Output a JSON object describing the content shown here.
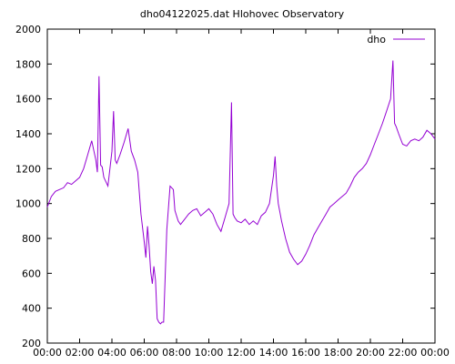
{
  "chart_data": {
    "type": "line",
    "title": "dho04122025.dat Hlohovec Observatory",
    "xlabel": "",
    "ylabel": "",
    "x_ticks": [
      "00:00",
      "02:00",
      "04:00",
      "06:00",
      "08:00",
      "10:00",
      "12:00",
      "14:00",
      "16:00",
      "18:00",
      "20:00",
      "22:00",
      "00:00"
    ],
    "y_ticks": [
      200,
      400,
      600,
      800,
      1000,
      1200,
      1400,
      1600,
      1800,
      2000
    ],
    "xlim": [
      0,
      24
    ],
    "ylim": [
      200,
      2000
    ],
    "grid": false,
    "legend": {
      "placement": "top-right",
      "entries": [
        "dho"
      ]
    },
    "colors": {
      "series": "#9400d3",
      "axis": "#000000"
    },
    "series": [
      {
        "name": "dho",
        "x": [
          0.0,
          0.25,
          0.5,
          0.75,
          1.0,
          1.25,
          1.5,
          1.75,
          2.0,
          2.25,
          2.5,
          2.75,
          3.0,
          3.1,
          3.2,
          3.3,
          3.4,
          3.5,
          3.75,
          4.0,
          4.1,
          4.2,
          4.3,
          4.5,
          4.75,
          5.0,
          5.2,
          5.4,
          5.6,
          5.8,
          6.0,
          6.1,
          6.2,
          6.3,
          6.4,
          6.5,
          6.6,
          6.7,
          6.8,
          6.9,
          7.0,
          7.1,
          7.2,
          7.4,
          7.6,
          7.8,
          7.9,
          8.0,
          8.1,
          8.25,
          8.5,
          8.75,
          9.0,
          9.25,
          9.5,
          9.75,
          10.0,
          10.25,
          10.5,
          10.75,
          11.0,
          11.25,
          11.4,
          11.5,
          11.6,
          11.75,
          12.0,
          12.25,
          12.5,
          12.75,
          13.0,
          13.25,
          13.5,
          13.75,
          14.0,
          14.1,
          14.2,
          14.3,
          14.5,
          14.75,
          15.0,
          15.25,
          15.5,
          15.75,
          16.0,
          16.25,
          16.5,
          16.75,
          17.0,
          17.25,
          17.5,
          17.75,
          18.0,
          18.25,
          18.5,
          18.75,
          19.0,
          19.25,
          19.5,
          19.75,
          20.0,
          20.25,
          20.5,
          20.75,
          21.0,
          21.25,
          21.4,
          21.5,
          21.6,
          21.75,
          22.0,
          22.25,
          22.5,
          22.75,
          23.0,
          23.25,
          23.5,
          23.75,
          24.0
        ],
        "values": [
          980,
          1040,
          1070,
          1080,
          1090,
          1120,
          1110,
          1130,
          1150,
          1200,
          1280,
          1360,
          1250,
          1180,
          1730,
          1220,
          1210,
          1150,
          1100,
          1300,
          1530,
          1250,
          1230,
          1280,
          1350,
          1430,
          1300,
          1250,
          1180,
          940,
          780,
          690,
          870,
          760,
          610,
          540,
          640,
          560,
          340,
          320,
          310,
          320,
          320,
          850,
          1100,
          1080,
          960,
          930,
          900,
          880,
          910,
          940,
          960,
          970,
          930,
          950,
          970,
          940,
          880,
          840,
          920,
          1000,
          1580,
          940,
          920,
          900,
          890,
          910,
          880,
          900,
          880,
          930,
          950,
          1000,
          1160,
          1270,
          1100,
          1000,
          900,
          800,
          720,
          680,
          650,
          670,
          710,
          760,
          820,
          860,
          900,
          940,
          980,
          1000,
          1020,
          1040,
          1060,
          1100,
          1150,
          1180,
          1200,
          1230,
          1280,
          1340,
          1400,
          1460,
          1530,
          1600,
          1820,
          1460,
          1440,
          1400,
          1340,
          1330,
          1360,
          1370,
          1360,
          1380,
          1420,
          1400,
          1370
        ]
      }
    ]
  }
}
